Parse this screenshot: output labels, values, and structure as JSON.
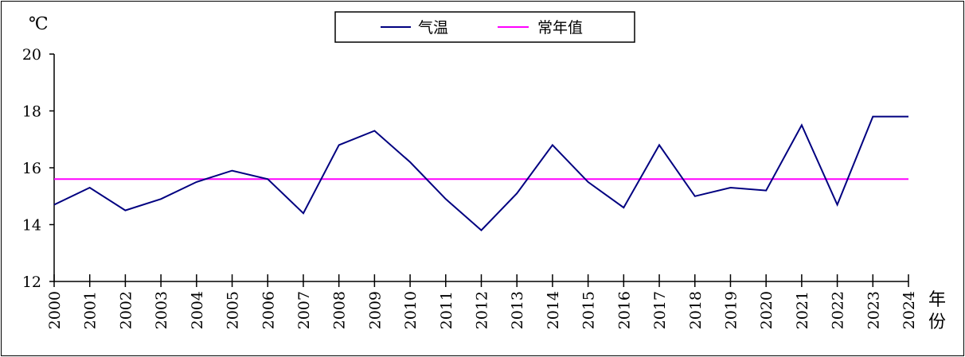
{
  "chart_data": {
    "type": "line",
    "title": "",
    "ylabel": "℃",
    "xlabel": "年份",
    "ylim": [
      12,
      20
    ],
    "yticks": [
      12,
      14,
      16,
      18,
      20
    ],
    "grid": false,
    "legend_position": "top-center",
    "categories": [
      "2000",
      "2001",
      "2002",
      "2003",
      "2004",
      "2005",
      "2006",
      "2007",
      "2008",
      "2009",
      "2010",
      "2011",
      "2012",
      "2013",
      "2014",
      "2015",
      "2016",
      "2017",
      "2018",
      "2019",
      "2020",
      "2021",
      "2022",
      "2023",
      "2024"
    ],
    "series": [
      {
        "name": "气温",
        "color": "#000080",
        "values": [
          14.7,
          15.3,
          14.5,
          14.9,
          15.5,
          15.9,
          15.6,
          14.4,
          16.8,
          17.3,
          16.2,
          14.9,
          13.8,
          15.1,
          16.8,
          15.5,
          14.6,
          16.8,
          15.0,
          15.3,
          15.2,
          17.5,
          14.7,
          17.8,
          17.8
        ]
      },
      {
        "name": "常年值",
        "color": "#ff00ff",
        "values": [
          15.6,
          15.6,
          15.6,
          15.6,
          15.6,
          15.6,
          15.6,
          15.6,
          15.6,
          15.6,
          15.6,
          15.6,
          15.6,
          15.6,
          15.6,
          15.6,
          15.6,
          15.6,
          15.6,
          15.6,
          15.6,
          15.6,
          15.6,
          15.6,
          15.6
        ]
      }
    ]
  }
}
